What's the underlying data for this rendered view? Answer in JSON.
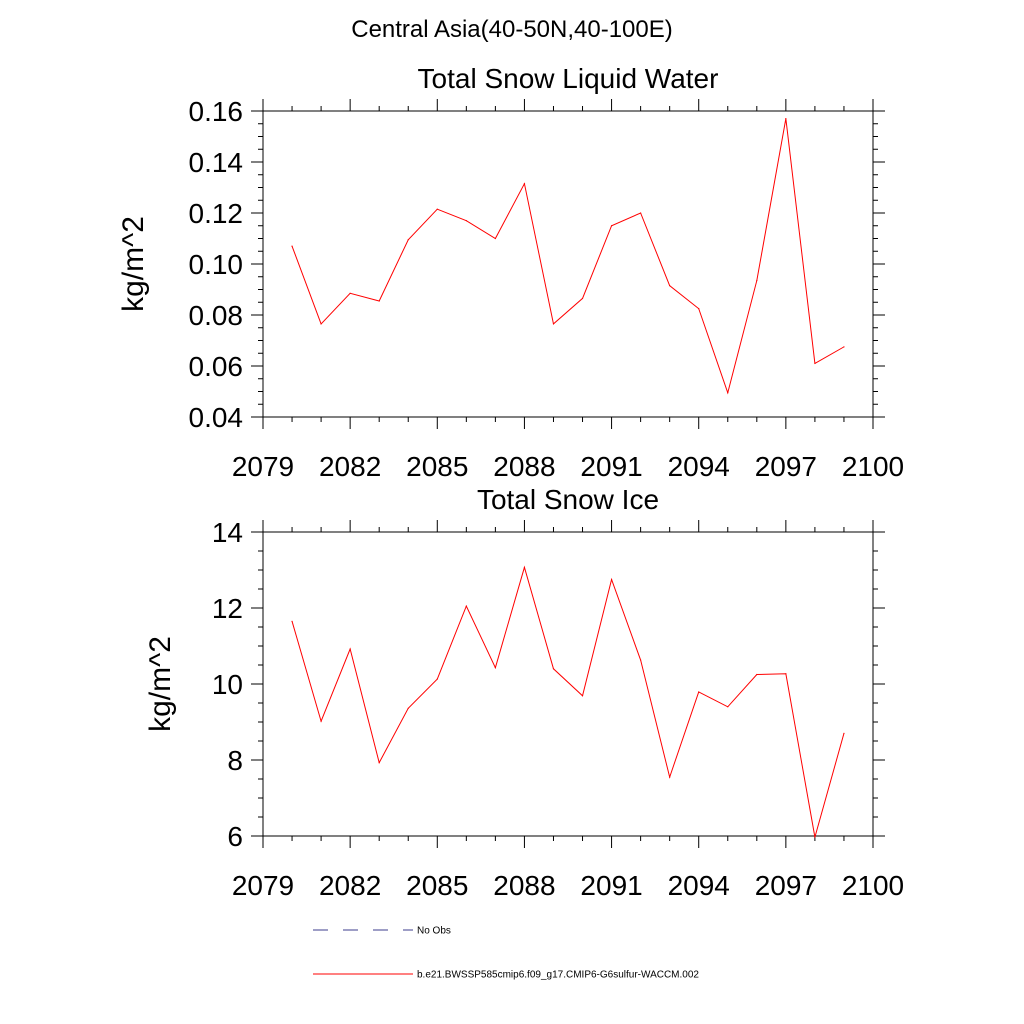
{
  "figure": {
    "title": "Central Asia(40-50N,40-100E)"
  },
  "colors": {
    "model_series": "#ff0000",
    "obs_series": "#3c3c8c",
    "axes": "#000000"
  },
  "legend": {
    "obs_label": "No Obs",
    "model_label": "b.e21.BWSSP585cmip6.f09_g17.CMIP6-G6sulfur-WACCM.002"
  },
  "chart_data": [
    {
      "type": "line",
      "title": "Total Snow Liquid Water",
      "ylabel": "kg/m^2",
      "xlim": [
        2079,
        2100
      ],
      "ylim": [
        0.04,
        0.16
      ],
      "x_ticks": [
        2079,
        2082,
        2085,
        2088,
        2091,
        2094,
        2097,
        2100
      ],
      "y_ticks": [
        0.04,
        0.06,
        0.08,
        0.1,
        0.12,
        0.14,
        0.16
      ],
      "y_tick_labels": [
        "0.04",
        "0.06",
        "0.08",
        "0.10",
        "0.12",
        "0.14",
        "0.16"
      ],
      "y_minor_step": 0.005,
      "x_minor_step": 1,
      "x": [
        2080,
        2081,
        2082,
        2083,
        2084,
        2085,
        2086,
        2087,
        2088,
        2089,
        2090,
        2091,
        2092,
        2093,
        2094,
        2095,
        2096,
        2097,
        2098,
        2099
      ],
      "series": [
        {
          "name": "b.e21.BWSSP585cmip6.f09_g17.CMIP6-G6sulfur-WACCM.002",
          "values": [
            0.107,
            0.0765,
            0.0885,
            0.0855,
            0.1095,
            0.1215,
            0.117,
            0.11,
            0.1315,
            0.0765,
            0.0865,
            0.115,
            0.12,
            0.0915,
            0.0825,
            0.0495,
            0.0935,
            0.157,
            0.061,
            0.0675
          ]
        }
      ]
    },
    {
      "type": "line",
      "title": "Total Snow Ice",
      "ylabel": "kg/m^2",
      "xlim": [
        2079,
        2100
      ],
      "ylim": [
        6,
        14
      ],
      "x_ticks": [
        2079,
        2082,
        2085,
        2088,
        2091,
        2094,
        2097,
        2100
      ],
      "y_ticks": [
        6,
        8,
        10,
        12,
        14
      ],
      "y_tick_labels": [
        "6",
        "8",
        "10",
        "12",
        "14"
      ],
      "y_minor_step": 0.5,
      "x_minor_step": 1,
      "x": [
        2080,
        2081,
        2082,
        2083,
        2084,
        2085,
        2086,
        2087,
        2088,
        2089,
        2090,
        2091,
        2092,
        2093,
        2094,
        2095,
        2096,
        2097,
        2098,
        2099
      ],
      "series": [
        {
          "name": "b.e21.BWSSP585cmip6.f09_g17.CMIP6-G6sulfur-WACCM.002",
          "values": [
            11.65,
            9.02,
            10.92,
            7.93,
            9.36,
            10.13,
            12.05,
            10.43,
            13.07,
            10.4,
            9.69,
            12.75,
            10.63,
            7.55,
            9.79,
            9.4,
            10.25,
            10.27,
            5.97,
            8.7
          ]
        }
      ]
    }
  ]
}
